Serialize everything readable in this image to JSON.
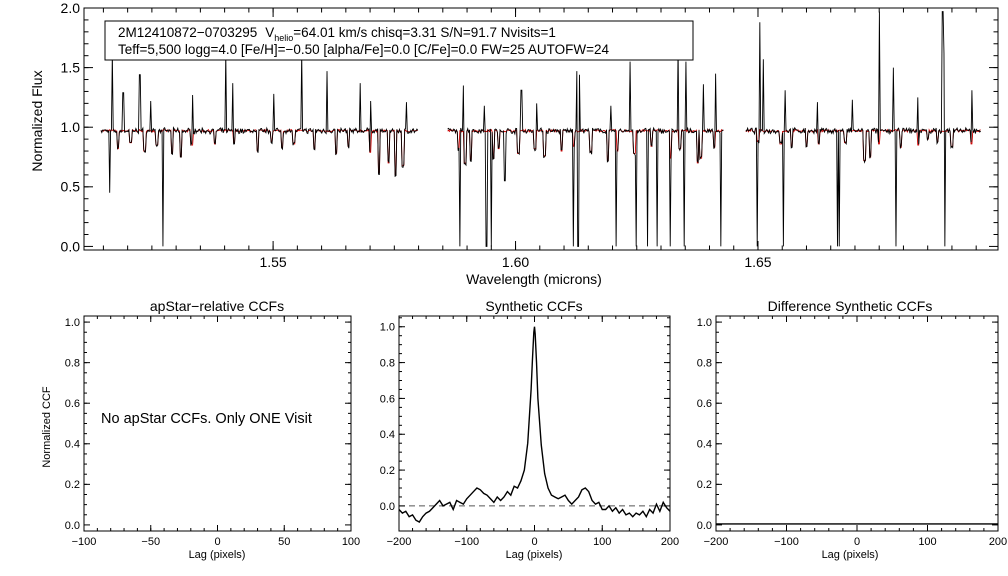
{
  "colors": {
    "observed": "#000000",
    "model": "#cc0000",
    "zero_line": "#555555"
  },
  "chart_data": [
    {
      "id": "spectrum",
      "type": "line",
      "title": "",
      "xlabel": "Wavelength (microns)",
      "ylabel": "Normalized Flux",
      "xlim": [
        1.511,
        1.6995
      ],
      "ylim": [
        -0.03,
        2.0
      ],
      "xticks": [
        1.55,
        1.6,
        1.65
      ],
      "xtick_labels": [
        "1.55",
        "1.60",
        "1.65"
      ],
      "yticks": [
        0.0,
        0.5,
        1.0,
        1.5,
        2.0
      ],
      "ytick_labels": [
        "0.0",
        "0.5",
        "1.0",
        "1.5",
        "2.0"
      ],
      "chips": [
        [
          1.5145,
          1.58
        ],
        [
          1.586,
          1.643
        ],
        [
          1.6475,
          1.696
        ]
      ],
      "continuum": 0.97,
      "emission_spikes": [
        [
          1.5168,
          1.62
        ],
        [
          1.5191,
          1.29
        ],
        [
          1.5225,
          1.44
        ],
        [
          1.5247,
          1.22
        ],
        [
          1.5334,
          1.27
        ],
        [
          1.5402,
          1.62
        ],
        [
          1.5417,
          1.37
        ],
        [
          1.5501,
          1.28
        ],
        [
          1.5559,
          1.62
        ],
        [
          1.5611,
          1.47
        ],
        [
          1.568,
          1.37
        ],
        [
          1.5701,
          1.22
        ],
        [
          1.5775,
          1.21
        ],
        [
          1.5893,
          1.35
        ],
        [
          1.5935,
          1.18
        ],
        [
          1.6012,
          1.31
        ],
        [
          1.6044,
          1.2
        ],
        [
          1.6127,
          1.47
        ],
        [
          1.6131,
          1.44
        ],
        [
          1.6197,
          1.18
        ],
        [
          1.6236,
          1.55
        ],
        [
          1.6335,
          1.68
        ],
        [
          1.6351,
          1.55
        ],
        [
          1.6388,
          1.36
        ],
        [
          1.6412,
          1.45
        ],
        [
          1.6504,
          1.88
        ],
        [
          1.6511,
          1.57
        ],
        [
          1.6556,
          1.31
        ],
        [
          1.6623,
          1.21
        ],
        [
          1.6694,
          1.23
        ],
        [
          1.6751,
          1.97
        ],
        [
          1.6779,
          1.5
        ],
        [
          1.683,
          1.25
        ],
        [
          1.6881,
          1.97
        ],
        [
          1.6884,
          1.62
        ],
        [
          1.6941,
          1.31
        ]
      ],
      "telluric_dips": [
        [
          1.5163,
          0.45
        ],
        [
          1.5273,
          0.0
        ],
        [
          1.5885,
          0.0
        ],
        [
          1.594,
          0.0
        ],
        [
          1.595,
          0.0
        ],
        [
          1.5978,
          0.55
        ],
        [
          1.6119,
          0.0
        ],
        [
          1.6129,
          0.0
        ],
        [
          1.6208,
          0.0
        ],
        [
          1.6249,
          0.0
        ],
        [
          1.6272,
          0.0
        ],
        [
          1.6292,
          0.0
        ],
        [
          1.6319,
          0.0
        ],
        [
          1.6348,
          0.0
        ],
        [
          1.6423,
          0.0
        ],
        [
          1.6499,
          0.0
        ],
        [
          1.6552,
          0.0
        ],
        [
          1.6664,
          0.0
        ],
        [
          1.6668,
          0.0
        ],
        [
          1.6784,
          0.0
        ],
        [
          1.6885,
          0.0
        ]
      ],
      "model_lines": [
        [
          1.518,
          0.82
        ],
        [
          1.5206,
          0.87
        ],
        [
          1.5235,
          0.8
        ],
        [
          1.526,
          0.85
        ],
        [
          1.5292,
          0.78
        ],
        [
          1.531,
          0.75
        ],
        [
          1.5332,
          0.85
        ],
        [
          1.538,
          0.86
        ],
        [
          1.542,
          0.87
        ],
        [
          1.5468,
          0.8
        ],
        [
          1.5497,
          0.88
        ],
        [
          1.5519,
          0.83
        ],
        [
          1.5543,
          0.86
        ],
        [
          1.5585,
          0.82
        ],
        [
          1.563,
          0.78
        ],
        [
          1.5655,
          0.84
        ],
        [
          1.57,
          0.79
        ],
        [
          1.5718,
          0.62
        ],
        [
          1.5738,
          0.7
        ],
        [
          1.5752,
          0.6
        ],
        [
          1.5768,
          0.68
        ],
        [
          1.5882,
          0.82
        ],
        [
          1.5896,
          0.7
        ],
        [
          1.5908,
          0.73
        ],
        [
          1.5955,
          0.74
        ],
        [
          1.5965,
          0.82
        ],
        [
          1.6006,
          0.78
        ],
        [
          1.604,
          0.82
        ],
        [
          1.606,
          0.76
        ],
        [
          1.6095,
          0.8
        ],
        [
          1.612,
          0.84
        ],
        [
          1.6155,
          0.79
        ],
        [
          1.619,
          0.72
        ],
        [
          1.621,
          0.8
        ],
        [
          1.6245,
          0.78
        ],
        [
          1.628,
          0.84
        ],
        [
          1.632,
          0.74
        ],
        [
          1.6339,
          0.82
        ],
        [
          1.6376,
          0.7
        ],
        [
          1.6382,
          0.74
        ],
        [
          1.641,
          0.83
        ],
        [
          1.65,
          0.88
        ],
        [
          1.6547,
          0.86
        ],
        [
          1.657,
          0.84
        ],
        [
          1.66,
          0.84
        ],
        [
          1.6625,
          0.86
        ],
        [
          1.668,
          0.87
        ],
        [
          1.672,
          0.72
        ],
        [
          1.6732,
          0.75
        ],
        [
          1.675,
          0.86
        ],
        [
          1.6795,
          0.83
        ],
        [
          1.683,
          0.85
        ],
        [
          1.685,
          0.9
        ],
        [
          1.687,
          0.88
        ],
        [
          1.69,
          0.84
        ],
        [
          1.694,
          0.86
        ]
      ],
      "legend": {
        "star_id": "2M12410872−0703295",
        "vhelio_symbol": "V",
        "vhelio_subscript": "helio",
        "line1_rest": "=64.01 km/s  chisq=3.31  S/N=91.7  Nvisits=1",
        "line2": "Teff=5,500 logg=4.0 [Fe/H]=−0.50 [alpha/Fe]=0.0 [C/Fe]=0.0 FW=25 AUTOFW=24"
      }
    },
    {
      "id": "apstar",
      "type": "line",
      "title": "apStar−relative CCFs",
      "xlabel": "Lag (pixels)",
      "ylabel": "Normalized CCF",
      "xlim": [
        -100,
        100
      ],
      "ylim": [
        -0.03,
        1.03
      ],
      "xticks": [
        -100,
        -50,
        0,
        50,
        100
      ],
      "xtick_labels": [
        "−100",
        "−50",
        "0",
        "50",
        "100"
      ],
      "yticks": [
        0.0,
        0.2,
        0.4,
        0.6,
        0.8,
        1.0
      ],
      "ytick_labels": [
        "0.0",
        "0.2",
        "0.4",
        "0.6",
        "0.8",
        "1.0"
      ],
      "annotation": "No apStar CCFs.  Only ONE Visit",
      "series": []
    },
    {
      "id": "synthetic",
      "type": "line",
      "title": "Synthetic CCFs",
      "xlabel": "Lag (pixels)",
      "ylabel": "",
      "xlim": [
        -200,
        200
      ],
      "ylim": [
        -0.14,
        1.06
      ],
      "xticks": [
        -200,
        -100,
        0,
        100,
        200
      ],
      "xtick_labels": [
        "−200",
        "−100",
        "0",
        "100",
        "200"
      ],
      "yticks": [
        0.0,
        0.2,
        0.4,
        0.6,
        0.8,
        1.0
      ],
      "ytick_labels": [
        "0.0",
        "0.2",
        "0.4",
        "0.6",
        "0.8",
        "1.0"
      ],
      "zero_line": 0.0,
      "series": [
        {
          "name": "synthetic ccf",
          "x": [
            -200,
            -195,
            -190,
            -185,
            -180,
            -175,
            -170,
            -165,
            -160,
            -155,
            -150,
            -145,
            -140,
            -135,
            -130,
            -125,
            -120,
            -115,
            -110,
            -105,
            -100,
            -95,
            -90,
            -85,
            -80,
            -75,
            -70,
            -65,
            -60,
            -55,
            -50,
            -45,
            -40,
            -35,
            -30,
            -25,
            -20,
            -15,
            -10,
            -5,
            -3,
            -1,
            0,
            1,
            3,
            5,
            10,
            15,
            20,
            25,
            30,
            35,
            40,
            45,
            50,
            55,
            60,
            65,
            70,
            75,
            80,
            85,
            90,
            95,
            100,
            105,
            110,
            115,
            120,
            125,
            130,
            135,
            140,
            145,
            150,
            155,
            160,
            165,
            170,
            175,
            180,
            185,
            190,
            195,
            200
          ],
          "y": [
            -0.02,
            -0.04,
            -0.03,
            -0.06,
            -0.05,
            -0.08,
            -0.09,
            -0.06,
            -0.04,
            -0.03,
            -0.01,
            0.01,
            0.03,
            0.0,
            0.01,
            0.02,
            -0.02,
            0.03,
            0.02,
            0.01,
            0.04,
            0.06,
            0.08,
            0.1,
            0.09,
            0.07,
            0.06,
            0.04,
            0.02,
            0.05,
            0.03,
            0.05,
            0.08,
            0.06,
            0.11,
            0.1,
            0.14,
            0.2,
            0.35,
            0.65,
            0.82,
            0.97,
            1.0,
            0.96,
            0.8,
            0.6,
            0.34,
            0.18,
            0.1,
            0.06,
            0.05,
            0.04,
            0.05,
            0.06,
            0.03,
            0.01,
            0.03,
            0.05,
            0.09,
            0.1,
            0.08,
            0.03,
            0.01,
            0.02,
            -0.02,
            -0.02,
            0.0,
            -0.03,
            -0.01,
            -0.04,
            -0.02,
            -0.05,
            -0.04,
            -0.06,
            -0.04,
            -0.05,
            -0.03,
            -0.06,
            -0.02,
            -0.04,
            0.01,
            -0.03,
            0.02,
            -0.01,
            -0.03
          ]
        }
      ]
    },
    {
      "id": "difference",
      "type": "line",
      "title": "Difference Synthetic CCFs",
      "xlabel": "Lag (pixels)",
      "ylabel": "",
      "xlim": [
        -200,
        200
      ],
      "ylim": [
        -0.03,
        1.03
      ],
      "xticks": [
        -200,
        -100,
        0,
        100,
        200
      ],
      "xtick_labels": [
        "−200",
        "−100",
        "0",
        "100",
        "200"
      ],
      "yticks": [
        0.0,
        0.2,
        0.4,
        0.6,
        0.8,
        1.0
      ],
      "ytick_labels": [
        "0.0",
        "0.2",
        "0.4",
        "0.6",
        "0.8",
        "1.0"
      ],
      "series": [
        {
          "name": "difference ccf",
          "x": [
            -200,
            200
          ],
          "y": [
            0.0,
            0.0
          ]
        }
      ]
    }
  ]
}
